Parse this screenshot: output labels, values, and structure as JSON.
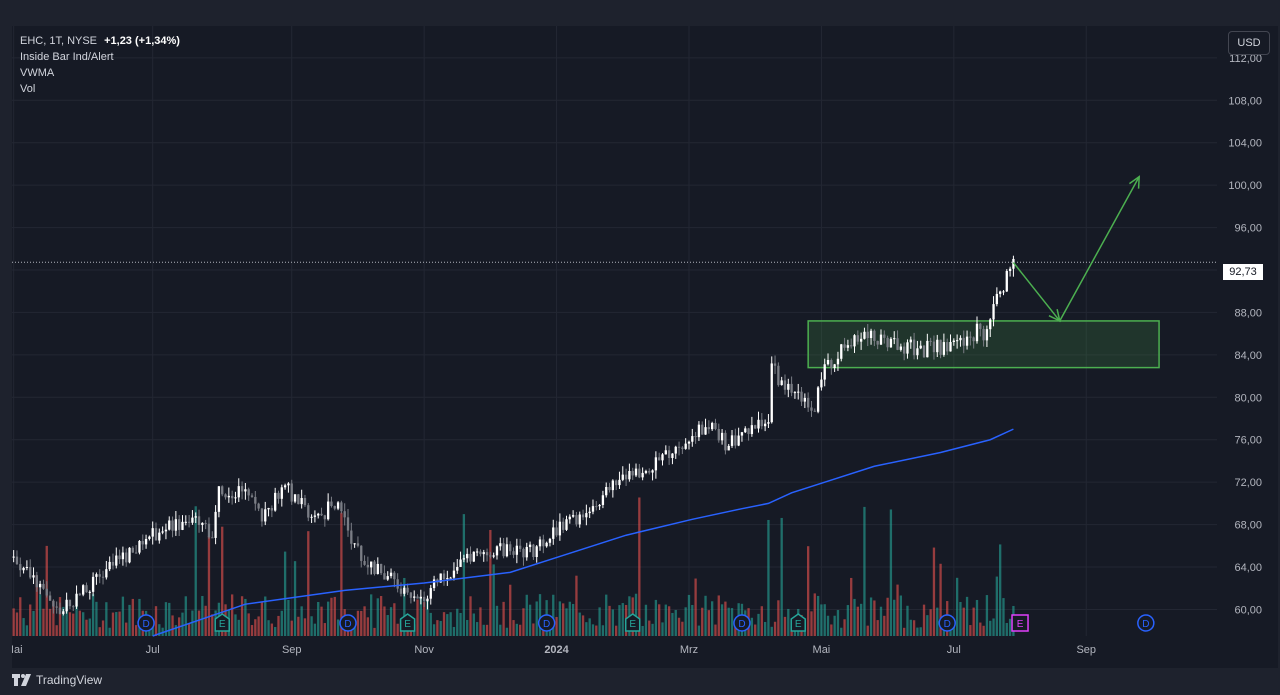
{
  "header": {
    "symbol": "EHC, 1T, NYSE",
    "change": "+1,23 (+1,34%)",
    "indicators": [
      "Inside Bar Ind/Alert",
      "VWMA",
      "Vol"
    ],
    "currency": "USD"
  },
  "footer": {
    "brand": "TradingView"
  },
  "colors": {
    "up": "#26a69a",
    "down": "#ef5350",
    "candle_up": "#ffffff",
    "candle_down": "#7a7d85",
    "vwma": "#2962ff",
    "box": "#4caf50",
    "arrow": "#4caf50",
    "event_dividend": "#2962ff",
    "event_earnings": "#26a69a",
    "event_earnings_upcoming": "#e040fb"
  },
  "chart_data": {
    "type": "candlestick",
    "title": "EHC, 1T, NYSE",
    "ylim": [
      57.5,
      115
    ],
    "y_ticks": [
      "112,00",
      "108,00",
      "104,00",
      "100,00",
      "96,00",
      "92,00",
      "88,00",
      "84,00",
      "80,00",
      "76,00",
      "72,00",
      "68,00",
      "64,00",
      "60,00"
    ],
    "y_tick_values": [
      112,
      108,
      104,
      100,
      96,
      92,
      88,
      84,
      80,
      76,
      72,
      68,
      64,
      60
    ],
    "x_labels": [
      "Mai",
      "Jul",
      "Sep",
      "Nov",
      "2024",
      "Mrz",
      "Mai",
      "Jul",
      "Sep"
    ],
    "x_label_index": [
      0,
      42,
      84,
      124,
      164,
      204,
      244,
      284,
      324
    ],
    "n_slots": 364,
    "last_price": "92,73",
    "last_price_value": 92.73,
    "price_path": [
      [
        0,
        65.0
      ],
      [
        8,
        62.5
      ],
      [
        14,
        60.0
      ],
      [
        20,
        61.5
      ],
      [
        30,
        64.0
      ],
      [
        40,
        67.0
      ],
      [
        55,
        68.5
      ],
      [
        60,
        66.5
      ],
      [
        62,
        71.0
      ],
      [
        70,
        71.5
      ],
      [
        75,
        69.0
      ],
      [
        82,
        71.5
      ],
      [
        88,
        69.5
      ],
      [
        92,
        68.5
      ],
      [
        98,
        70.5
      ],
      [
        102,
        66.5
      ],
      [
        110,
        63.5
      ],
      [
        118,
        62.0
      ],
      [
        124,
        61.0
      ],
      [
        130,
        63.5
      ],
      [
        140,
        65.0
      ],
      [
        150,
        66.0
      ],
      [
        156,
        65.5
      ],
      [
        165,
        67.5
      ],
      [
        175,
        70.0
      ],
      [
        185,
        72.5
      ],
      [
        195,
        74.0
      ],
      [
        205,
        76.5
      ],
      [
        210,
        77.5
      ],
      [
        215,
        75.5
      ],
      [
        224,
        77.0
      ],
      [
        228,
        77.8
      ],
      [
        229,
        82.5
      ],
      [
        236,
        80.5
      ],
      [
        242,
        79.0
      ],
      [
        245,
        82.5
      ],
      [
        255,
        86.0
      ],
      [
        265,
        85.0
      ],
      [
        275,
        84.5
      ],
      [
        285,
        85.0
      ],
      [
        292,
        86.5
      ],
      [
        293,
        86.0
      ],
      [
        296,
        88.5
      ],
      [
        300,
        91.5
      ],
      [
        302,
        92.7
      ]
    ],
    "vwma_path": [
      [
        42,
        57.5
      ],
      [
        70,
        60.5
      ],
      [
        100,
        61.8
      ],
      [
        124,
        62.5
      ],
      [
        150,
        63.5
      ],
      [
        165,
        65.0
      ],
      [
        185,
        67.0
      ],
      [
        205,
        68.5
      ],
      [
        220,
        69.5
      ],
      [
        228,
        70.0
      ],
      [
        235,
        71.0
      ],
      [
        245,
        72.0
      ],
      [
        260,
        73.5
      ],
      [
        280,
        74.8
      ],
      [
        295,
        76.0
      ],
      [
        302,
        77.0
      ]
    ],
    "consolidation_box": {
      "x_start": 240,
      "x_end": 346,
      "y_low": 82.8,
      "y_high": 87.2
    },
    "projection_arrow": [
      [
        302,
        92.7
      ],
      [
        316,
        87.2
      ],
      [
        340,
        100.8
      ]
    ],
    "events": [
      {
        "type": "D",
        "index": 40
      },
      {
        "type": "E",
        "index": 63
      },
      {
        "type": "D",
        "index": 101
      },
      {
        "type": "E",
        "index": 119
      },
      {
        "type": "D",
        "index": 161
      },
      {
        "type": "E",
        "index": 187
      },
      {
        "type": "D",
        "index": 220
      },
      {
        "type": "E",
        "index": 237
      },
      {
        "type": "D",
        "index": 282
      },
      {
        "type": "E",
        "index": 304
      },
      {
        "type": "D",
        "index": 342
      }
    ]
  }
}
